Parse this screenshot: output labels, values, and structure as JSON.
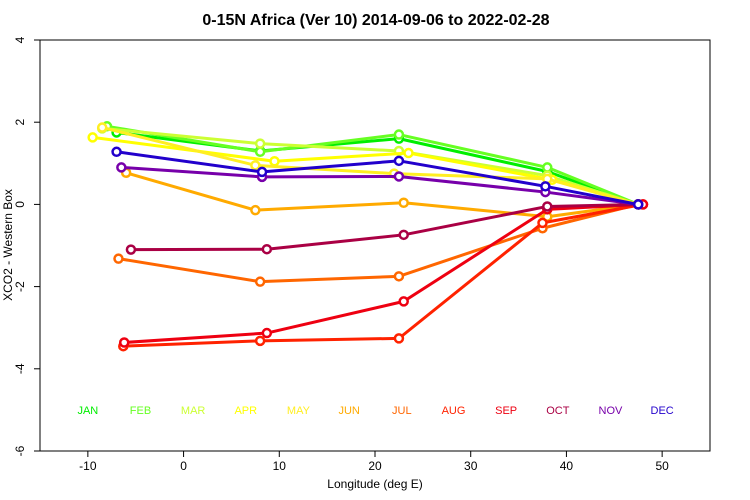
{
  "chart_data": {
    "type": "line",
    "title": "0-15N Africa (Ver 10)   2014-09-06 to 2022-02-28",
    "xlabel": "Longitude (deg E)",
    "ylabel": "XCO2 - Western Box",
    "xlim": [
      -15,
      55
    ],
    "ylim": [
      -6,
      4
    ],
    "xticks": [
      -10,
      0,
      10,
      20,
      30,
      40,
      50
    ],
    "yticks": [
      -6,
      -4,
      -2,
      0,
      2,
      4
    ],
    "grid": false,
    "month_labels": [
      {
        "label": "JAN",
        "color": "#00ee00",
        "x": -10
      },
      {
        "label": "FEB",
        "color": "#66ff22",
        "x": -4.5
      },
      {
        "label": "MAR",
        "color": "#ccff33",
        "x": 1
      },
      {
        "label": "APR",
        "color": "#ffff00",
        "x": 6.5
      },
      {
        "label": "MAY",
        "color": "#ffee22",
        "x": 12
      },
      {
        "label": "JUN",
        "color": "#ffaa00",
        "x": 17.3
      },
      {
        "label": "JUL",
        "color": "#ff6600",
        "x": 22.8
      },
      {
        "label": "AUG",
        "color": "#ff2200",
        "x": 28.2
      },
      {
        "label": "SEP",
        "color": "#ee0011",
        "x": 33.7
      },
      {
        "label": "OCT",
        "color": "#aa0044",
        "x": 39.1
      },
      {
        "label": "NOV",
        "color": "#7700aa",
        "x": 44.6
      },
      {
        "label": "DEC",
        "color": "#2200cc",
        "x": 50
      }
    ],
    "series": [
      {
        "color": "#00ee00",
        "x": [
          -7,
          8,
          22.5,
          38,
          47.5
        ],
        "y": [
          1.75,
          1.3,
          1.6,
          0.8,
          0
        ]
      },
      {
        "color": "#66ff22",
        "x": [
          -8,
          8,
          22.5,
          38,
          47.5
        ],
        "y": [
          1.9,
          1.28,
          1.7,
          0.9,
          0
        ]
      },
      {
        "color": "#ccff33",
        "x": [
          -8.5,
          8,
          22.5,
          38,
          47.5
        ],
        "y": [
          1.85,
          1.48,
          1.3,
          0.7,
          0
        ]
      },
      {
        "color": "#ffff00",
        "x": [
          -9.5,
          9.5,
          23.5,
          38.5,
          47.5
        ],
        "y": [
          1.63,
          1.05,
          1.25,
          0.6,
          0
        ]
      },
      {
        "color": "#ffee22",
        "x": [
          -8.5,
          7.5,
          22,
          38,
          47.5
        ],
        "y": [
          1.87,
          0.95,
          0.75,
          0.62,
          0
        ]
      },
      {
        "color": "#ffaa00",
        "x": [
          -6,
          7.5,
          23,
          38,
          47.5
        ],
        "y": [
          0.77,
          -0.14,
          0.04,
          -0.3,
          0
        ]
      },
      {
        "color": "#ff6600",
        "x": [
          -6.8,
          8,
          22.5,
          37.5,
          47.5
        ],
        "y": [
          -1.32,
          -1.88,
          -1.75,
          -0.58,
          0
        ]
      },
      {
        "color": "#ff2200",
        "x": [
          -6.3,
          8,
          22.5,
          37.5,
          48
        ],
        "y": [
          -3.45,
          -3.32,
          -3.26,
          -0.45,
          0
        ]
      },
      {
        "color": "#ee0011",
        "x": [
          -6.2,
          8.7,
          23,
          38,
          48
        ],
        "y": [
          -3.36,
          -3.13,
          -2.36,
          -0.12,
          0
        ]
      },
      {
        "color": "#aa0044",
        "x": [
          -5.5,
          8.7,
          23,
          38,
          47.5
        ],
        "y": [
          -1.1,
          -1.09,
          -0.74,
          -0.05,
          0
        ]
      },
      {
        "color": "#7700aa",
        "x": [
          -6.5,
          8.2,
          22.5,
          37.8,
          47.5
        ],
        "y": [
          0.9,
          0.67,
          0.68,
          0.3,
          0
        ]
      },
      {
        "color": "#2200cc",
        "x": [
          -7,
          8.2,
          22.5,
          37.8,
          47.5
        ],
        "y": [
          1.28,
          0.79,
          1.06,
          0.44,
          0
        ]
      }
    ]
  }
}
